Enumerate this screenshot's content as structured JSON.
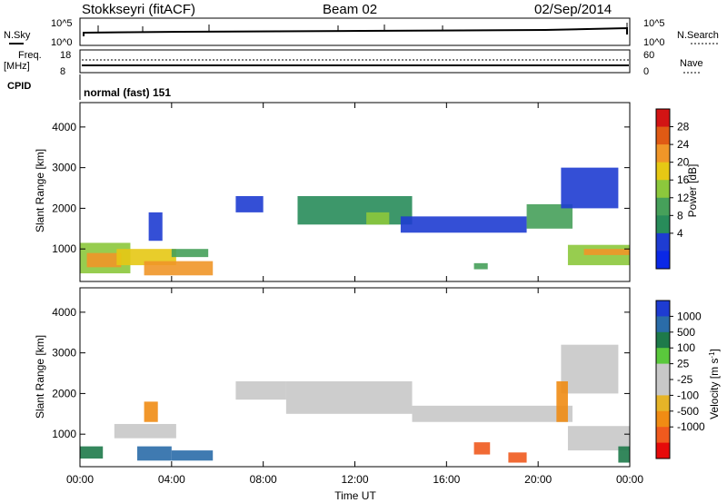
{
  "header": {
    "station": "Stokkseyri (fitACF)",
    "beam": "Beam 02",
    "date": "02/Sep/2014"
  },
  "top_panels": {
    "nsky_label": "N.Sky",
    "nsky_ticks": [
      "10^5",
      "10^0"
    ],
    "nsearch_label": "N.Search",
    "nsearch_ticks": [
      "10^5",
      "10^0"
    ],
    "freq_label_1": "Freq.",
    "freq_label_2": "[MHz]",
    "freq_ticks": [
      "18",
      "8"
    ],
    "nave_label": "Nave",
    "nave_ticks": [
      "60",
      "0"
    ],
    "cpid_label": "CPID",
    "cpid_text": "normal (fast) 151"
  },
  "axes": {
    "y_label": "Slant Range [km]",
    "y_ticks": [
      "4000",
      "3000",
      "2000",
      "1000"
    ],
    "x_label": "Time UT",
    "x_ticks": [
      "00:00",
      "04:00",
      "08:00",
      "12:00",
      "16:00",
      "20:00",
      "00:00"
    ]
  },
  "colorbars": {
    "power": {
      "label": "Power [dB]",
      "ticks": [
        "28",
        "24",
        "20",
        "16",
        "12",
        "8",
        "4"
      ],
      "colors": [
        "#d21414",
        "#e05a14",
        "#f09628",
        "#e6c814",
        "#8cc83c",
        "#46a05a",
        "#288c5a",
        "#1e3cd2",
        "#0a28e6"
      ]
    },
    "velocity": {
      "label": "Velocity [m s",
      "label_sup": "-1",
      "label_end": "]",
      "ticks": [
        "1000",
        "500",
        "100",
        "25",
        "-25",
        "-100",
        "-500",
        "-1000"
      ],
      "colors": [
        "#1e3cd2",
        "#2a6ca8",
        "#1e7a4a",
        "#5ac83c",
        "#c8c8c8",
        "#c8c8c8",
        "#e6b428",
        "#f08c14",
        "#f05a1e",
        "#e60a0a"
      ]
    }
  },
  "chart_data": {
    "type": "heatmap",
    "x_unit": "hours UT",
    "xlim": [
      0,
      24
    ],
    "ylim": [
      200,
      4600
    ],
    "panels": [
      {
        "name": "Power",
        "unit": "dB",
        "regions": [
          {
            "t0": 0.0,
            "t1": 2.2,
            "r0": 400,
            "r1": 1150,
            "value": 16
          },
          {
            "t0": 0.3,
            "t1": 1.8,
            "r0": 550,
            "r1": 900,
            "value": 26
          },
          {
            "t0": 1.6,
            "t1": 4.2,
            "r0": 600,
            "r1": 1000,
            "value": 20
          },
          {
            "t0": 2.8,
            "t1": 5.8,
            "r0": 350,
            "r1": 700,
            "value": 24
          },
          {
            "t0": 3.0,
            "t1": 3.6,
            "r0": 1200,
            "r1": 1900,
            "value": 8
          },
          {
            "t0": 4.0,
            "t1": 5.6,
            "r0": 800,
            "r1": 1000,
            "value": 14
          },
          {
            "t0": 6.8,
            "t1": 8.0,
            "r0": 1900,
            "r1": 2300,
            "value": 6
          },
          {
            "t0": 9.5,
            "t1": 14.5,
            "r0": 1600,
            "r1": 2300,
            "value": 10
          },
          {
            "t0": 12.5,
            "t1": 13.5,
            "r0": 1600,
            "r1": 1900,
            "value": 16
          },
          {
            "t0": 14.0,
            "t1": 19.5,
            "r0": 1400,
            "r1": 1800,
            "value": 8
          },
          {
            "t0": 19.5,
            "t1": 21.5,
            "r0": 1500,
            "r1": 2100,
            "value": 14
          },
          {
            "t0": 21.0,
            "t1": 23.5,
            "r0": 2000,
            "r1": 3000,
            "value": 6
          },
          {
            "t0": 21.3,
            "t1": 24.0,
            "r0": 600,
            "r1": 1100,
            "value": 18
          },
          {
            "t0": 22.0,
            "t1": 24.0,
            "r0": 850,
            "r1": 1000,
            "value": 24
          },
          {
            "t0": 17.2,
            "t1": 17.8,
            "r0": 500,
            "r1": 650,
            "value": 12
          }
        ]
      },
      {
        "name": "Velocity",
        "unit": "m/s",
        "regions": [
          {
            "t0": 0.0,
            "t1": 1.0,
            "r0": 400,
            "r1": 700,
            "value": 100
          },
          {
            "t0": 1.5,
            "t1": 4.2,
            "r0": 900,
            "r1": 1250,
            "value": 0
          },
          {
            "t0": 2.5,
            "t1": 4.0,
            "r0": 350,
            "r1": 700,
            "value": 300
          },
          {
            "t0": 2.8,
            "t1": 3.4,
            "r0": 1300,
            "r1": 1800,
            "value": -300
          },
          {
            "t0": 4.0,
            "t1": 5.8,
            "r0": 350,
            "r1": 600,
            "value": 300
          },
          {
            "t0": 6.8,
            "t1": 9.0,
            "r0": 1850,
            "r1": 2300,
            "value": 0
          },
          {
            "t0": 9.0,
            "t1": 14.5,
            "r0": 1500,
            "r1": 2300,
            "value": 0
          },
          {
            "t0": 14.5,
            "t1": 21.5,
            "r0": 1300,
            "r1": 1700,
            "value": 0
          },
          {
            "t0": 21.0,
            "t1": 23.5,
            "r0": 2000,
            "r1": 3200,
            "value": 0
          },
          {
            "t0": 21.3,
            "t1": 24.0,
            "r0": 600,
            "r1": 1200,
            "value": 0
          },
          {
            "t0": 17.2,
            "t1": 17.9,
            "r0": 500,
            "r1": 800,
            "value": -400
          },
          {
            "t0": 18.7,
            "t1": 19.5,
            "r0": 300,
            "r1": 550,
            "value": -400
          },
          {
            "t0": 20.8,
            "t1": 21.3,
            "r0": 1300,
            "r1": 2300,
            "value": -300
          },
          {
            "t0": 23.5,
            "t1": 24.0,
            "r0": 300,
            "r1": 700,
            "value": 100
          }
        ]
      }
    ]
  }
}
